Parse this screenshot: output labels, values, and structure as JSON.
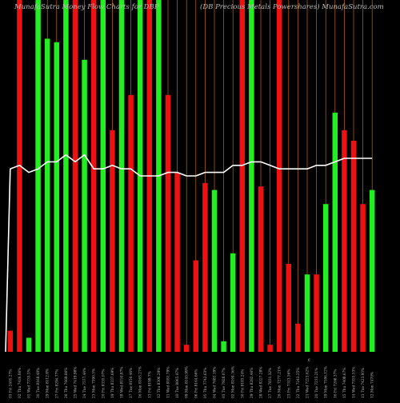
{
  "header": {
    "left_title": "MunafaSutra  Money Flow  Charts for DBP",
    "right_title": "(DB Precious Metals Powershares) MunafaSutra.com"
  },
  "colors": {
    "background": "#000000",
    "up": "#22ee22",
    "down": "#ee1111",
    "gridline": "#c06a10",
    "line": "#ffffff",
    "label": "#bbbbbb"
  },
  "chart_data": {
    "type": "bar",
    "title": "MunafaSutra  Money Flow  Charts for DBP",
    "subtitle": "(DB Precious Metals Powershares) MunafaSutra.com",
    "ylim": [
      0,
      100
    ],
    "grid": true,
    "bars": [
      {
        "label": "03 Fri 2405.27%",
        "color": "down",
        "value": 6,
        "full_gridline": false
      },
      {
        "label": "02 Thu 7426.86%",
        "color": "down",
        "value": 100,
        "full_gridline": true
      },
      {
        "label": "01 Wed 7735.5%",
        "color": "up",
        "value": 4,
        "full_gridline": false
      },
      {
        "label": "30 Tue 8168.48%",
        "color": "up",
        "value": 100,
        "full_gridline": true
      },
      {
        "label": "29 Mon 8112.8%",
        "color": "up",
        "value": 89,
        "full_gridline": true
      },
      {
        "label": "27 Fri 8294.77%",
        "color": "up",
        "value": 88,
        "full_gridline": true
      },
      {
        "label": "26 Thu 7669.86%",
        "color": "up",
        "value": 100,
        "full_gridline": true
      },
      {
        "label": "25 Wed 7419.98%",
        "color": "down",
        "value": 100,
        "full_gridline": true
      },
      {
        "label": "24 Tue 7577.44%",
        "color": "up",
        "value": 83,
        "full_gridline": true
      },
      {
        "label": "23 Mon 7590.5%",
        "color": "down",
        "value": 100,
        "full_gridline": true
      },
      {
        "label": "20 Fri 8335.07%",
        "color": "up",
        "value": 100,
        "full_gridline": true
      },
      {
        "label": "19 Thu 8337.69%",
        "color": "down",
        "value": 63,
        "full_gridline": true
      },
      {
        "label": "18 Wed 8150.87%",
        "color": "up",
        "value": 100,
        "full_gridline": true
      },
      {
        "label": "17 Tue 8150.46%",
        "color": "down",
        "value": 73,
        "full_gridline": true
      },
      {
        "label": "16 Mon 8165.27%",
        "color": "up",
        "value": 100,
        "full_gridline": true
      },
      {
        "label": "13 Fri 8199.7%",
        "color": "down",
        "value": 100,
        "full_gridline": true
      },
      {
        "label": "12 Thu 8306.29%",
        "color": "up",
        "value": 100,
        "full_gridline": true
      },
      {
        "label": "11 Wed 8181.79%",
        "color": "down",
        "value": 73,
        "full_gridline": true
      },
      {
        "label": "10 Tue 8065.07%",
        "color": "down",
        "value": 51,
        "full_gridline": true
      },
      {
        "label": "09 Mon 8140.99%",
        "color": "down",
        "value": 2,
        "full_gridline": true
      },
      {
        "label": "06 Fri 8164.66%",
        "color": "down",
        "value": 26,
        "full_gridline": true
      },
      {
        "label": "05 Thu 7742.63%",
        "color": "down",
        "value": 48,
        "full_gridline": true
      },
      {
        "label": "04 Wed 7681.19%",
        "color": "up",
        "value": 46,
        "full_gridline": true
      },
      {
        "label": "03 Tue 7928.07%",
        "color": "up",
        "value": 3,
        "full_gridline": true
      },
      {
        "label": "02 Mon 8104.36%",
        "color": "up",
        "value": 28,
        "full_gridline": true
      },
      {
        "label": "30 Fri 8183.24%",
        "color": "down",
        "value": 100,
        "full_gridline": true
      },
      {
        "label": "29 Thu 8282.46%",
        "color": "up",
        "value": 100,
        "full_gridline": true
      },
      {
        "label": "28 Wed 8227.28%",
        "color": "down",
        "value": 47,
        "full_gridline": true
      },
      {
        "label": "27 Tue 7831.32%",
        "color": "down",
        "value": 2,
        "full_gridline": true
      },
      {
        "label": "26 Mon 7277.21%",
        "color": "down",
        "value": 100,
        "full_gridline": true
      },
      {
        "label": "23 Fri 7313.56%",
        "color": "down",
        "value": 25,
        "full_gridline": true
      },
      {
        "label": "22 Thu 7243.25%",
        "color": "down",
        "value": 8,
        "full_gridline": true
      },
      {
        "label": "21 Wed 7223.62%",
        "color": "up",
        "value": 22,
        "full_gridline": true
      },
      {
        "label": "20 Tue 7235.21%",
        "color": "down",
        "value": 22,
        "full_gridline": true
      },
      {
        "label": "19 Mon 7186.12%",
        "color": "up",
        "value": 42,
        "full_gridline": true
      },
      {
        "label": "16 Fri 7208.37%",
        "color": "up",
        "value": 68,
        "full_gridline": true
      },
      {
        "label": "15 Thu 7408.67%",
        "color": "down",
        "value": 63,
        "full_gridline": true
      },
      {
        "label": "14 Wed 7355.53%",
        "color": "down",
        "value": 60,
        "full_gridline": true
      },
      {
        "label": "13 Tue 7423.95%",
        "color": "down",
        "value": 42,
        "full_gridline": true
      },
      {
        "label": "12 Mon 7470%",
        "color": "up",
        "value": 46,
        "full_gridline": true
      }
    ],
    "line_values": [
      52,
      53,
      51,
      52,
      54,
      54,
      56,
      54,
      56,
      52,
      52,
      53,
      52,
      52,
      50,
      50,
      50,
      51,
      51,
      50,
      50,
      51,
      51,
      51,
      53,
      53,
      54,
      54,
      53,
      52,
      52,
      52,
      52,
      53,
      53,
      54,
      55,
      55,
      55,
      55
    ]
  }
}
